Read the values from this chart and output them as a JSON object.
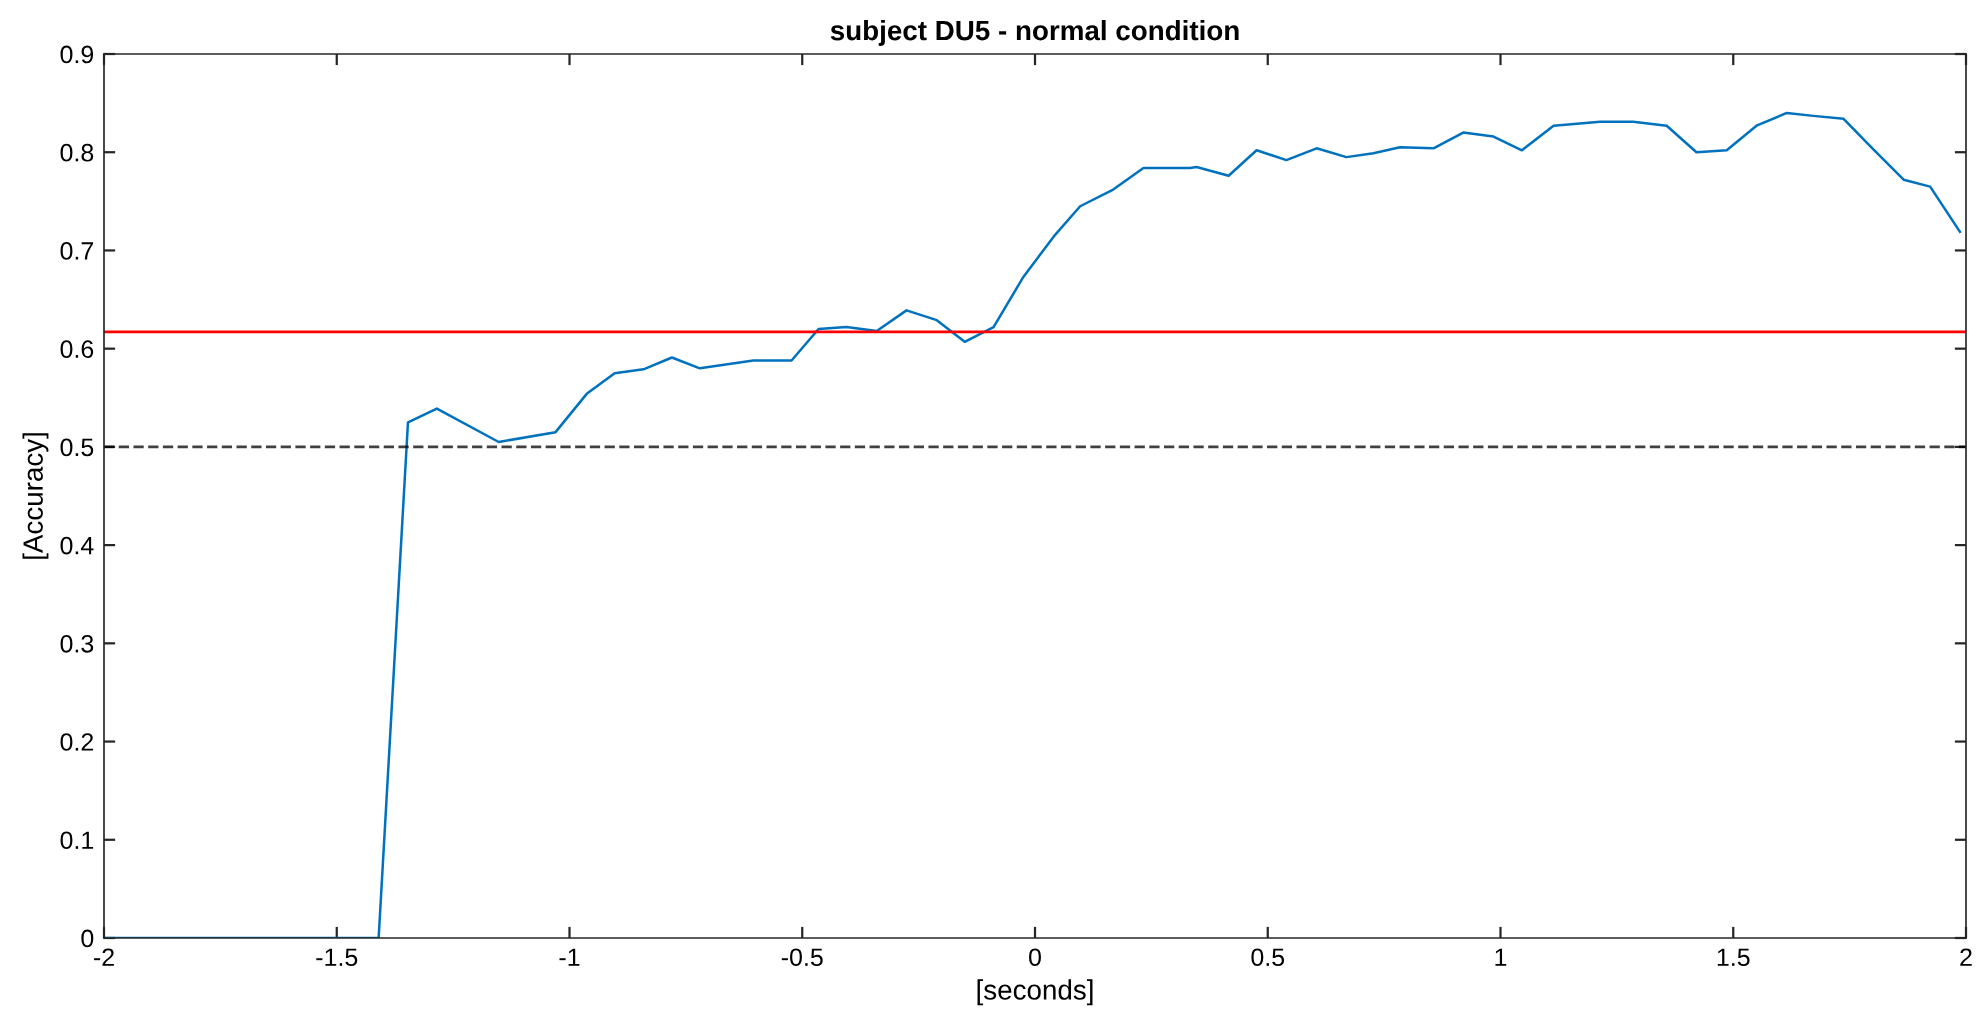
{
  "chart_data": {
    "type": "line",
    "title": "subject DU5 - normal condition",
    "xlabel": "[seconds]",
    "ylabel": "[Accuracy]",
    "xlim": [
      -2,
      2
    ],
    "ylim": [
      0,
      0.9
    ],
    "xticks": [
      -2,
      -1.5,
      -1,
      -0.5,
      0,
      0.5,
      1,
      1.5,
      2
    ],
    "yticks": [
      0,
      0.1,
      0.2,
      0.3,
      0.4,
      0.5,
      0.6,
      0.7,
      0.8,
      0.9
    ],
    "grid": false,
    "legend": false,
    "marker": "none",
    "line_style": "solid",
    "series": [
      {
        "color": "#0072bd",
        "x": [
          -2,
          -1.41,
          -1.347,
          -1.285,
          -1.152,
          -1.03,
          -0.963,
          -0.903,
          -0.841,
          -0.78,
          -0.72,
          -0.605,
          -0.523,
          -0.465,
          -0.405,
          -0.34,
          -0.276,
          -0.211,
          -0.151,
          -0.089,
          -0.025,
          0.04,
          0.097,
          0.168,
          0.233,
          0.333,
          0.347,
          0.416,
          0.476,
          0.54,
          0.605,
          0.669,
          0.727,
          0.784,
          0.856,
          0.92,
          0.985,
          1.046,
          1.114,
          1.214,
          1.285,
          1.357,
          1.421,
          1.486,
          1.55,
          1.615,
          1.672,
          1.737,
          1.801,
          1.866,
          1.923,
          1.987
        ],
        "values": [
          0,
          0,
          0.525,
          0.539,
          0.505,
          0.515,
          0.554,
          0.575,
          0.579,
          0.591,
          0.58,
          0.588,
          0.588,
          0.62,
          0.622,
          0.618,
          0.639,
          0.629,
          0.607,
          0.622,
          0.673,
          0.714,
          0.745,
          0.762,
          0.784,
          0.784,
          0.785,
          0.776,
          0.802,
          0.792,
          0.804,
          0.795,
          0.799,
          0.805,
          0.804,
          0.82,
          0.816,
          0.802,
          0.827,
          0.831,
          0.831,
          0.827,
          0.8,
          0.802,
          0.827,
          0.84,
          0.837,
          0.834,
          0.803,
          0.772,
          0.765,
          0.719
        ]
      }
    ],
    "ref_lines": [
      {
        "axis": "y",
        "value": 0.617,
        "color": "#ff0000",
        "line_style": "solid"
      },
      {
        "axis": "y",
        "value": 0.5,
        "color": "#000000",
        "line_style": "dashed"
      }
    ]
  }
}
